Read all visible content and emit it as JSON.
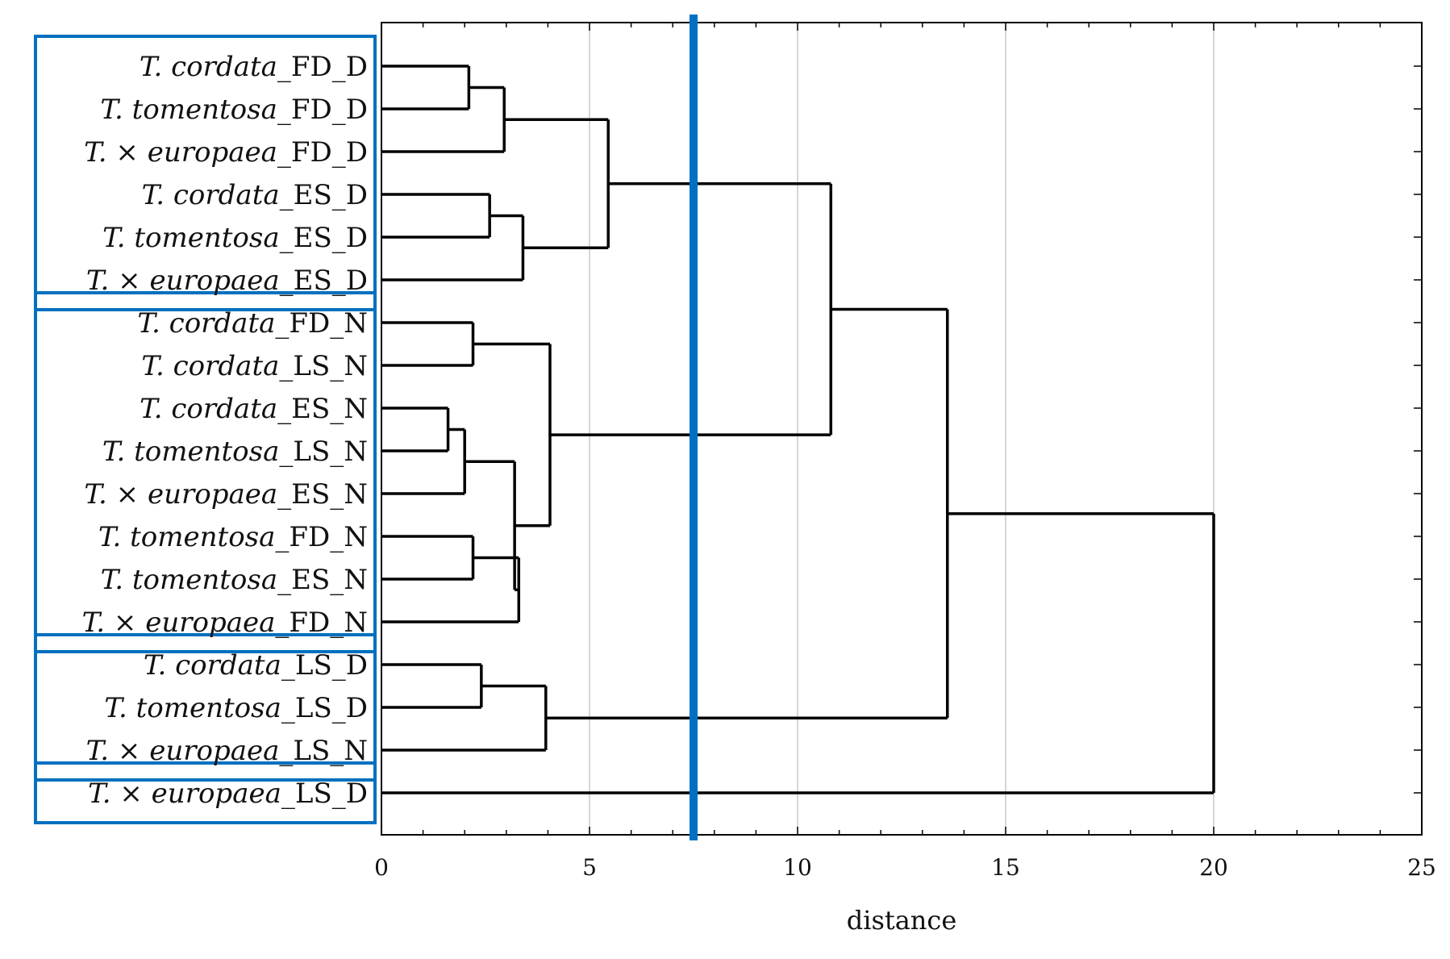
{
  "chart_data": {
    "type": "dendrogram",
    "orientation": "horizontal",
    "xlabel": "distance",
    "xlim": [
      0,
      25
    ],
    "x_ticks": [
      0,
      5,
      10,
      15,
      20,
      25
    ],
    "grid": true,
    "cut_line": {
      "distance": 7.5,
      "color": "#0070c0"
    },
    "line_color": "#000000",
    "group_box_color": "#0070c0",
    "leaves": [
      {
        "species": "T. cordata",
        "suffix": "_FD_D"
      },
      {
        "species": "T. tomentosa",
        "suffix": "_FD_D"
      },
      {
        "species": "T. × europaea",
        "suffix": "_FD_D"
      },
      {
        "species": "T. cordata",
        "suffix": "_ES_D"
      },
      {
        "species": "T. tomentosa",
        "suffix": "_ES_D"
      },
      {
        "species": "T. × europaea",
        "suffix": "_ES_D"
      },
      {
        "species": "T. cordata",
        "suffix": "_FD_N"
      },
      {
        "species": "T. cordata",
        "suffix": "_LS_N"
      },
      {
        "species": "T. cordata",
        "suffix": "_ES_N"
      },
      {
        "species": "T. tomentosa",
        "suffix": "_LS_N"
      },
      {
        "species": "T. × europaea",
        "suffix": "_ES_N"
      },
      {
        "species": "T. tomentosa",
        "suffix": "_FD_N"
      },
      {
        "species": "T. tomentosa",
        "suffix": "_ES_N"
      },
      {
        "species": "T. × europaea",
        "suffix": "_FD_N"
      },
      {
        "species": "T. cordata",
        "suffix": "_LS_D"
      },
      {
        "species": "T. tomentosa",
        "suffix": "_LS_D"
      },
      {
        "species": "T. × europaea",
        "suffix": "_LS_N"
      },
      {
        "species": "T. × europaea",
        "suffix": "_LS_D"
      }
    ],
    "merges": [
      {
        "id": "m1",
        "children": [
          "L0",
          "L1"
        ],
        "distance": 2.1
      },
      {
        "id": "m2",
        "children": [
          "m1",
          "L2"
        ],
        "distance": 2.95
      },
      {
        "id": "m3",
        "children": [
          "L3",
          "L4"
        ],
        "distance": 2.6
      },
      {
        "id": "m4",
        "children": [
          "m3",
          "L5"
        ],
        "distance": 3.4
      },
      {
        "id": "m5",
        "children": [
          "m2",
          "m4"
        ],
        "distance": 5.45
      },
      {
        "id": "m6",
        "children": [
          "L6",
          "L7"
        ],
        "distance": 2.2
      },
      {
        "id": "m7",
        "children": [
          "L8",
          "L9"
        ],
        "distance": 1.6
      },
      {
        "id": "m8",
        "children": [
          "m7",
          "L10"
        ],
        "distance": 2.0
      },
      {
        "id": "m9",
        "children": [
          "L11",
          "L12"
        ],
        "distance": 2.2
      },
      {
        "id": "m10",
        "children": [
          "m9",
          "L13"
        ],
        "distance": 3.3
      },
      {
        "id": "m11",
        "children": [
          "m8",
          "m10"
        ],
        "distance": 3.2
      },
      {
        "id": "m12",
        "children": [
          "m6",
          "m11"
        ],
        "distance": 4.05
      },
      {
        "id": "m13",
        "children": [
          "m5",
          "m12"
        ],
        "distance": 10.8
      },
      {
        "id": "m14",
        "children": [
          "L14",
          "L15"
        ],
        "distance": 2.4
      },
      {
        "id": "m15",
        "children": [
          "m14",
          "L16"
        ],
        "distance": 3.95
      },
      {
        "id": "m16",
        "children": [
          "m13",
          "m15"
        ],
        "distance": 13.6
      },
      {
        "id": "m17",
        "children": [
          "m16",
          "L17"
        ],
        "distance": 20.0
      }
    ],
    "groups": [
      {
        "first_leaf": 0,
        "last_leaf": 5
      },
      {
        "first_leaf": 6,
        "last_leaf": 13
      },
      {
        "first_leaf": 14,
        "last_leaf": 16
      },
      {
        "first_leaf": 17,
        "last_leaf": 17
      }
    ]
  }
}
